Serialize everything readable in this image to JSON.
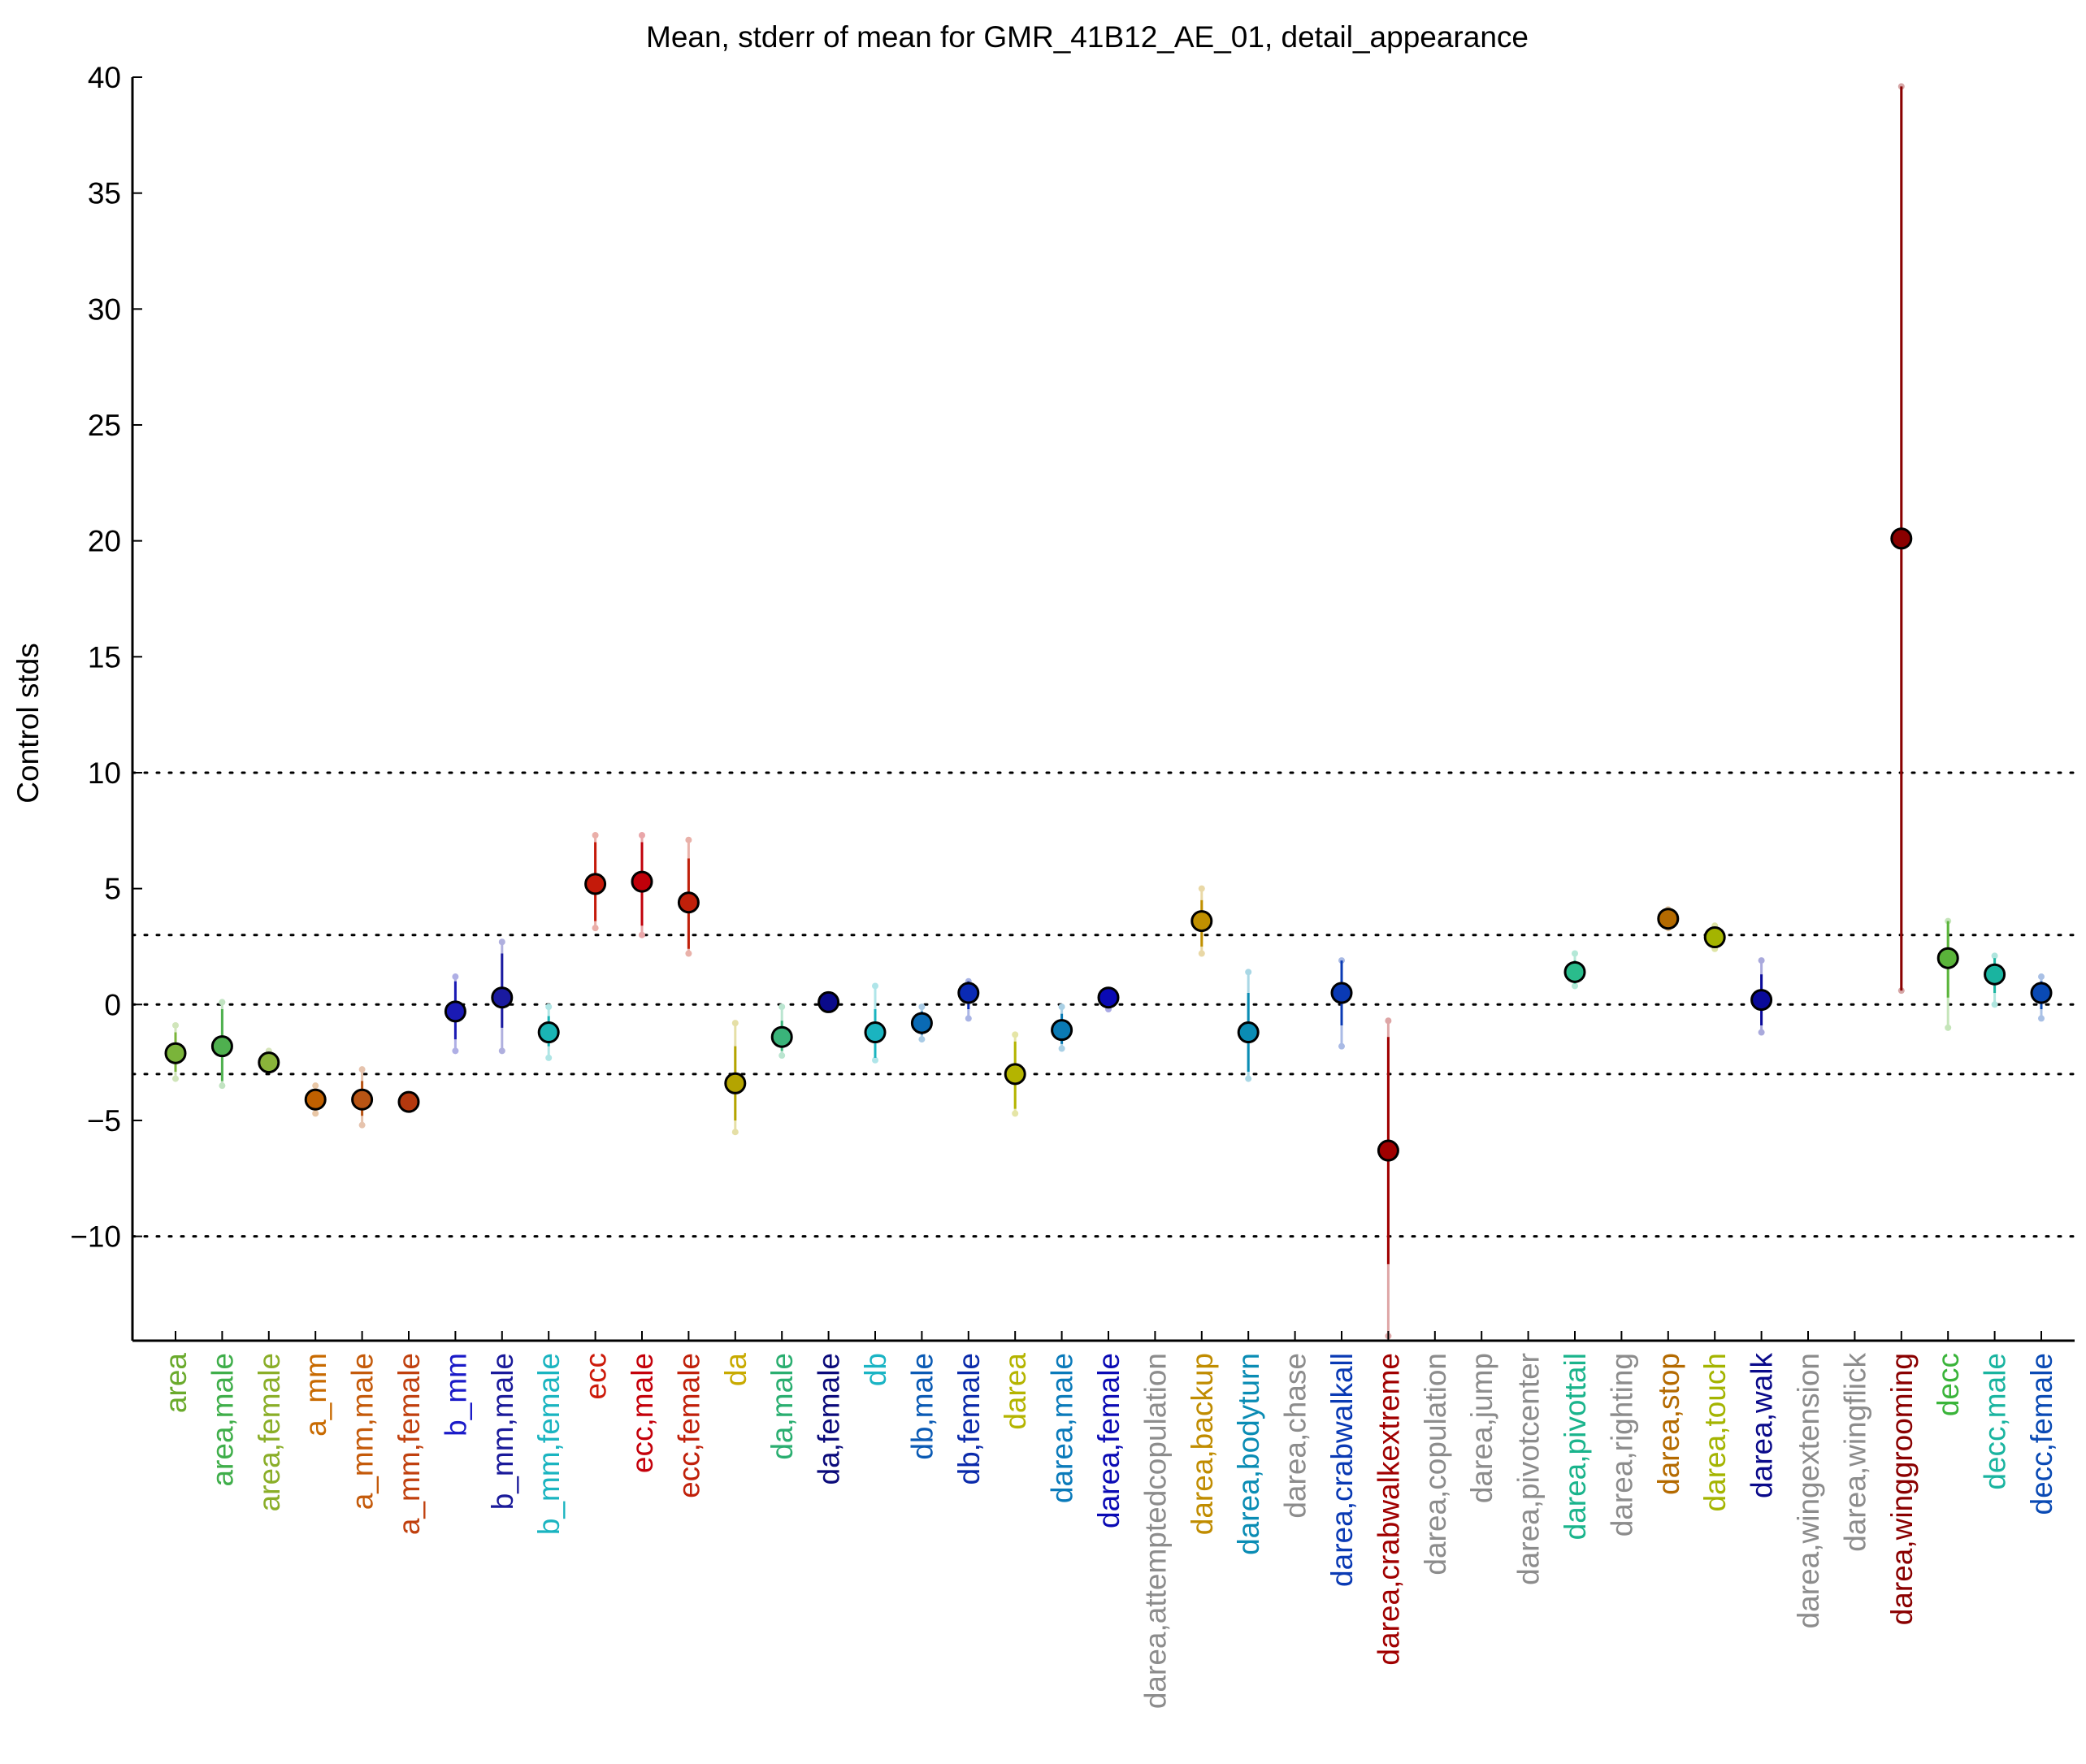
{
  "chart_data": {
    "type": "scatter",
    "title": "Mean, stderr of mean for GMR_41B12_AE_01, detail_appearance",
    "xlabel": "",
    "ylabel": "Control stds",
    "ylim": [
      -14.5,
      40
    ],
    "yticks": [
      -10,
      -5,
      0,
      5,
      10,
      15,
      20,
      25,
      30,
      35,
      40
    ],
    "ytick_labels": [
      "−10",
      "−5",
      "0",
      "5",
      "10",
      "15",
      "20",
      "25",
      "30",
      "35",
      "40"
    ],
    "reference_lines": [
      -10,
      -3,
      0,
      3,
      10
    ],
    "categories": [
      "area",
      "area,male",
      "area,female",
      "a_mm",
      "a_mm,male",
      "a_mm,female",
      "b_mm",
      "b_mm,male",
      "b_mm,female",
      "ecc",
      "ecc,male",
      "ecc,female",
      "da",
      "da,male",
      "da,female",
      "db",
      "db,male",
      "db,female",
      "darea",
      "darea,male",
      "darea,female",
      "darea,attemptedcopulation",
      "darea,backup",
      "darea,bodyturn",
      "darea,chase",
      "darea,crabwalkall",
      "darea,crabwalkextreme",
      "darea,copulation",
      "darea,jump",
      "darea,pivotcenter",
      "darea,pivottail",
      "darea,righting",
      "darea,stop",
      "darea,touch",
      "darea,walk",
      "darea,wingextension",
      "darea,wingflick",
      "darea,winggrooming",
      "decc",
      "decc,male",
      "decc,female"
    ],
    "label_colors": [
      "#6aaa2c",
      "#3fae4a",
      "#8aae28",
      "#c86a00",
      "#c45a0a",
      "#c0400e",
      "#1a1ac8",
      "#1a1a9a",
      "#1ab4c0",
      "#cc1a0a",
      "#c4000a",
      "#c0200a",
      "#c8aa00",
      "#2aae70",
      "#0a0a7a",
      "#1ab4c4",
      "#0a5ab4",
      "#0a2aaa",
      "#b4b400",
      "#0a7aba",
      "#0a0ab4",
      "#8c8c8c",
      "#c08c00",
      "#0a8cb4",
      "#8c8c8c",
      "#0a3ab4",
      "#a00000",
      "#8c8c8c",
      "#8c8c8c",
      "#8c8c8c",
      "#1ab48c",
      "#8c8c8c",
      "#b46a00",
      "#a4b400",
      "#0a0a8a",
      "#8c8c8c",
      "#8c8c8c",
      "#8a0000",
      "#3ab43a",
      "#1ab4a0",
      "#0a4ab4"
    ],
    "means": [
      -2.1,
      -1.8,
      -2.5,
      -4.1,
      -4.1,
      -4.2,
      -0.3,
      0.3,
      -1.2,
      5.2,
      5.3,
      4.4,
      -3.4,
      -1.4,
      0.1,
      -1.2,
      -0.8,
      0.5,
      -3.0,
      -1.1,
      0.3,
      null,
      3.6,
      -1.2,
      null,
      0.5,
      -6.3,
      null,
      null,
      null,
      1.4,
      null,
      3.7,
      2.9,
      0.2,
      null,
      null,
      20.1,
      2.0,
      1.3,
      0.5
    ],
    "stderr_inner": [
      [
        -2.9,
        -1.2
      ],
      [
        -3.3,
        -0.2
      ],
      [
        -2.9,
        -2.1
      ],
      [
        -4.3,
        -3.9
      ],
      [
        -4.8,
        -3.3
      ],
      [
        -4.3,
        -4.1
      ],
      [
        -1.5,
        1.0
      ],
      [
        -1.0,
        2.2
      ],
      [
        -1.8,
        -0.5
      ],
      [
        3.6,
        7.0
      ],
      [
        3.4,
        7.0
      ],
      [
        2.4,
        6.3
      ],
      [
        -5.0,
        -1.8
      ],
      [
        -2.0,
        -0.7
      ],
      [
        -0.2,
        0.3
      ],
      [
        -2.3,
        -0.2
      ],
      [
        -1.3,
        -0.3
      ],
      [
        -0.2,
        1.0
      ],
      [
        -4.5,
        -1.6
      ],
      [
        -1.7,
        -0.4
      ],
      [
        0.0,
        0.6
      ],
      null,
      [
        2.5,
        4.5
      ],
      [
        -2.9,
        0.5
      ],
      null,
      [
        -0.9,
        1.9
      ],
      [
        -11.2,
        -1.4
      ],
      null,
      null,
      null,
      [
        0.9,
        1.9
      ],
      null,
      [
        3.4,
        4.0
      ],
      [
        2.6,
        3.2
      ],
      [
        -0.9,
        1.3
      ],
      null,
      null,
      [
        0.6,
        39.6
      ],
      [
        0.3,
        3.6
      ],
      [
        0.5,
        2.0
      ],
      [
        -0.2,
        1.0
      ]
    ],
    "individual_points": [
      [
        -3.2,
        -0.9
      ],
      [
        -3.5,
        0.1
      ],
      [
        -2.8,
        -2.0
      ],
      [
        -4.7,
        -3.5
      ],
      [
        -5.2,
        -2.8
      ],
      [
        -4.4,
        -4.0
      ],
      [
        -2.0,
        1.2
      ],
      [
        -2.0,
        2.7
      ],
      [
        -2.3,
        -0.1
      ],
      [
        3.3,
        7.3
      ],
      [
        3.0,
        7.3
      ],
      [
        2.2,
        7.1
      ],
      [
        -5.5,
        -0.8
      ],
      [
        -2.2,
        -0.1
      ],
      [
        -0.2,
        0.3
      ],
      [
        -2.4,
        0.8
      ],
      [
        -1.5,
        -0.1
      ],
      [
        -0.6,
        1.0
      ],
      [
        -4.7,
        -1.3
      ],
      [
        -1.9,
        -0.1
      ],
      [
        -0.2,
        0.5
      ],
      null,
      [
        2.2,
        5.0
      ],
      [
        -3.2,
        1.4
      ],
      null,
      [
        -1.8,
        1.9
      ],
      [
        -14.3,
        -0.7
      ],
      null,
      null,
      null,
      [
        0.8,
        2.2
      ],
      null,
      [
        3.3,
        4.1
      ],
      [
        2.4,
        3.4
      ],
      [
        -1.2,
        1.9
      ],
      null,
      null,
      [
        0.6,
        39.6
      ],
      [
        -1.0,
        3.6
      ],
      [
        0.0,
        2.1
      ],
      [
        -0.6,
        1.2
      ]
    ],
    "marker_colors": [
      "#7ab43a",
      "#4fb04f",
      "#8ab43a",
      "#c06000",
      "#b85414",
      "#b4380e",
      "#1a1ab4",
      "#1a1aa0",
      "#1ab4b4",
      "#c41a0a",
      "#c0000a",
      "#c0200a",
      "#b4a400",
      "#3ab47a",
      "#0a0a8a",
      "#1ab4c0",
      "#0a6ab4",
      "#0a2ab4",
      "#b4b400",
      "#0a7ab4",
      "#0a0ab4",
      "#8c8c8c",
      "#c09000",
      "#0a8cb4",
      "#8c8c8c",
      "#0a3ab4",
      "#a00000",
      "#8c8c8c",
      "#8c8c8c",
      "#8c8c8c",
      "#2abc8c",
      "#8c8c8c",
      "#b46a00",
      "#a4b400",
      "#0a0a9a",
      "#8c8c8c",
      "#8c8c8c",
      "#8a0000",
      "#5ab43a",
      "#1ab4a0",
      "#0a4ab4"
    ],
    "grid": false,
    "legend": "none"
  }
}
